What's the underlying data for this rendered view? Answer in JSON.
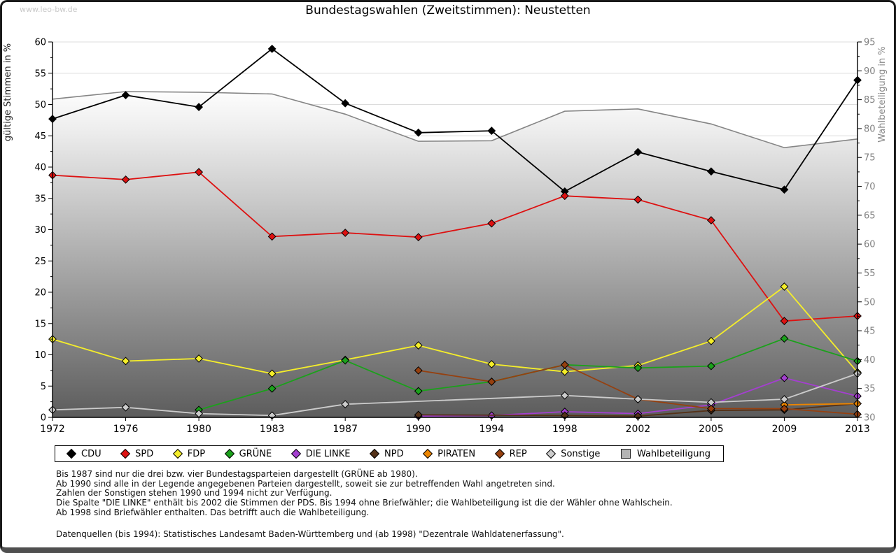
{
  "page": {
    "watermark": "www.leo-bw.de",
    "title": "Bundestagswahlen (Zweitstimmen): Neustetten"
  },
  "chart_data": {
    "type": "line",
    "title": "Bundestagswahlen (Zweitstimmen): Neustetten",
    "categories": [
      "1972",
      "1976",
      "1980",
      "1983",
      "1987",
      "1990",
      "1994",
      "1998",
      "2002",
      "2005",
      "2009",
      "2013"
    ],
    "ylabel_left": "gültige Stimmen in %",
    "ylabel_right": "Wahlbeteiligung in %",
    "ylim_left": [
      0,
      60
    ],
    "ylim_right": [
      30,
      95
    ],
    "ytick_step": 5,
    "grid": true,
    "legend_position": "bottom",
    "series": [
      {
        "name": "CDU",
        "color": "#000000",
        "axis": "left",
        "style": "line",
        "values": [
          47.7,
          51.5,
          49.6,
          58.9,
          50.2,
          45.5,
          45.8,
          36.1,
          42.4,
          39.3,
          36.4,
          53.9
        ]
      },
      {
        "name": "SPD",
        "color": "#dd1111",
        "axis": "left",
        "style": "line",
        "values": [
          38.7,
          38.0,
          39.2,
          28.9,
          29.5,
          28.8,
          31.0,
          35.4,
          34.8,
          31.5,
          15.4,
          16.2
        ]
      },
      {
        "name": "FDP",
        "color": "#f5ee2a",
        "axis": "left",
        "style": "line",
        "values": [
          12.5,
          9.0,
          9.4,
          7.0,
          9.2,
          11.5,
          8.5,
          7.3,
          8.3,
          12.2,
          20.9,
          7.2
        ]
      },
      {
        "name": "GRÜNE",
        "color": "#1ba11b",
        "axis": "left",
        "style": "line",
        "values": [
          null,
          null,
          1.2,
          4.6,
          9.1,
          4.2,
          5.7,
          8.4,
          7.9,
          8.2,
          12.6,
          9.0
        ]
      },
      {
        "name": "DIE LINKE",
        "color": "#a43fd0",
        "axis": "left",
        "style": "line",
        "values": [
          null,
          null,
          null,
          null,
          null,
          0.2,
          0.3,
          0.9,
          0.6,
          2.0,
          6.3,
          3.4
        ]
      },
      {
        "name": "NPD",
        "color": "#553218",
        "axis": "left",
        "style": "line",
        "values": [
          null,
          null,
          null,
          null,
          null,
          0.4,
          null,
          0.3,
          0.2,
          1.1,
          1.2,
          2.2
        ]
      },
      {
        "name": "PIRATEN",
        "color": "#ec8500",
        "axis": "left",
        "style": "line",
        "values": [
          null,
          null,
          null,
          null,
          null,
          null,
          null,
          null,
          null,
          null,
          2.0,
          2.2
        ]
      },
      {
        "name": "REP",
        "color": "#96400f",
        "axis": "left",
        "style": "line",
        "values": [
          null,
          null,
          null,
          null,
          null,
          7.5,
          5.7,
          8.4,
          2.9,
          1.4,
          1.4,
          0.5
        ]
      },
      {
        "name": "Sonstige",
        "color": "#cccccc",
        "axis": "left",
        "style": "line",
        "values": [
          1.2,
          1.6,
          0.6,
          0.3,
          2.1,
          null,
          null,
          3.5,
          2.9,
          2.4,
          2.9,
          7.0
        ]
      },
      {
        "name": "Wahlbeteiligung",
        "color": "#858585",
        "axis": "right",
        "style": "area",
        "values": [
          85.1,
          86.4,
          86.3,
          86.0,
          82.5,
          77.8,
          77.9,
          83.0,
          83.4,
          80.8,
          76.7,
          78.2
        ]
      }
    ]
  },
  "notes": [
    "Bis 1987 sind nur die drei bzw. vier Bundestagsparteien dargestellt (GRÜNE ab 1980).",
    "Ab 1990 sind alle in der Legende angegebenen Parteien dargestellt, soweit sie zur betreffenden Wahl angetreten sind.",
    "Zahlen der Sonstigen stehen 1990 und 1994 nicht zur Verfügung.",
    "Die Spalte \"DIE LINKE\" enthält bis 2002 die Stimmen der PDS. Bis 1994 ohne Briefwähler; die Wahlbeteiligung ist die der Wähler ohne Wahlschein.",
    "Ab 1998 sind Briefwähler enthalten. Das betrifft auch die Wahlbeteiligung."
  ],
  "source": "Datenquellen (bis 1994): Statistisches Landesamt Baden-Württemberg und (ab 1998) \"Dezentrale Wahldatenerfassung\"."
}
